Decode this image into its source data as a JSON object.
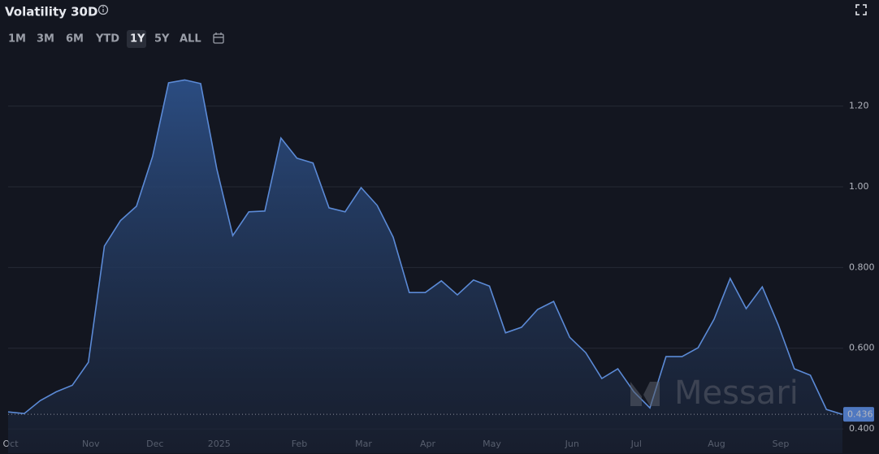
{
  "toolbar": {
    "title": "Volatility 30D",
    "ranges": [
      "1M",
      "3M",
      "6M",
      "YTD",
      "1Y",
      "5Y",
      "ALL"
    ],
    "active_range": "1Y"
  },
  "watermark": "Messari",
  "chart_data": {
    "type": "area",
    "categories": [
      "Oct",
      null,
      null,
      null,
      null,
      "Nov",
      null,
      null,
      null,
      "Dec",
      null,
      null,
      null,
      "2025",
      null,
      null,
      null,
      null,
      "Feb",
      null,
      null,
      null,
      "Mar",
      null,
      null,
      null,
      "Apr",
      null,
      null,
      null,
      "May",
      null,
      null,
      null,
      null,
      "Jun",
      null,
      null,
      null,
      "Jul",
      null,
      null,
      null,
      null,
      "Aug",
      null,
      null,
      null,
      "Sep",
      null,
      null,
      null,
      null
    ],
    "values": [
      0.442,
      0.438,
      0.47,
      0.492,
      0.508,
      0.565,
      0.853,
      0.916,
      0.952,
      1.075,
      1.258,
      1.265,
      1.256,
      1.045,
      0.879,
      0.938,
      0.94,
      1.121,
      1.071,
      1.059,
      0.948,
      0.938,
      0.998,
      0.954,
      0.875,
      0.738,
      0.738,
      0.767,
      0.732,
      0.769,
      0.754,
      0.638,
      0.652,
      0.696,
      0.716,
      0.627,
      0.589,
      0.525,
      0.549,
      0.492,
      0.452,
      0.579,
      0.579,
      0.601,
      0.672,
      0.773,
      0.698,
      0.752,
      0.658,
      0.549,
      0.533,
      0.448,
      0.436
    ],
    "color": "#5b8ad6",
    "ylim": [
      0.38,
      1.3
    ],
    "yticks": [
      {
        "value": 0.4,
        "label": "0.400"
      },
      {
        "value": 0.6,
        "label": "0.600"
      },
      {
        "value": 0.8,
        "label": "0.800"
      },
      {
        "value": 1.0,
        "label": "1.00"
      },
      {
        "value": 1.2,
        "label": "1.20"
      }
    ],
    "grid": true
  }
}
